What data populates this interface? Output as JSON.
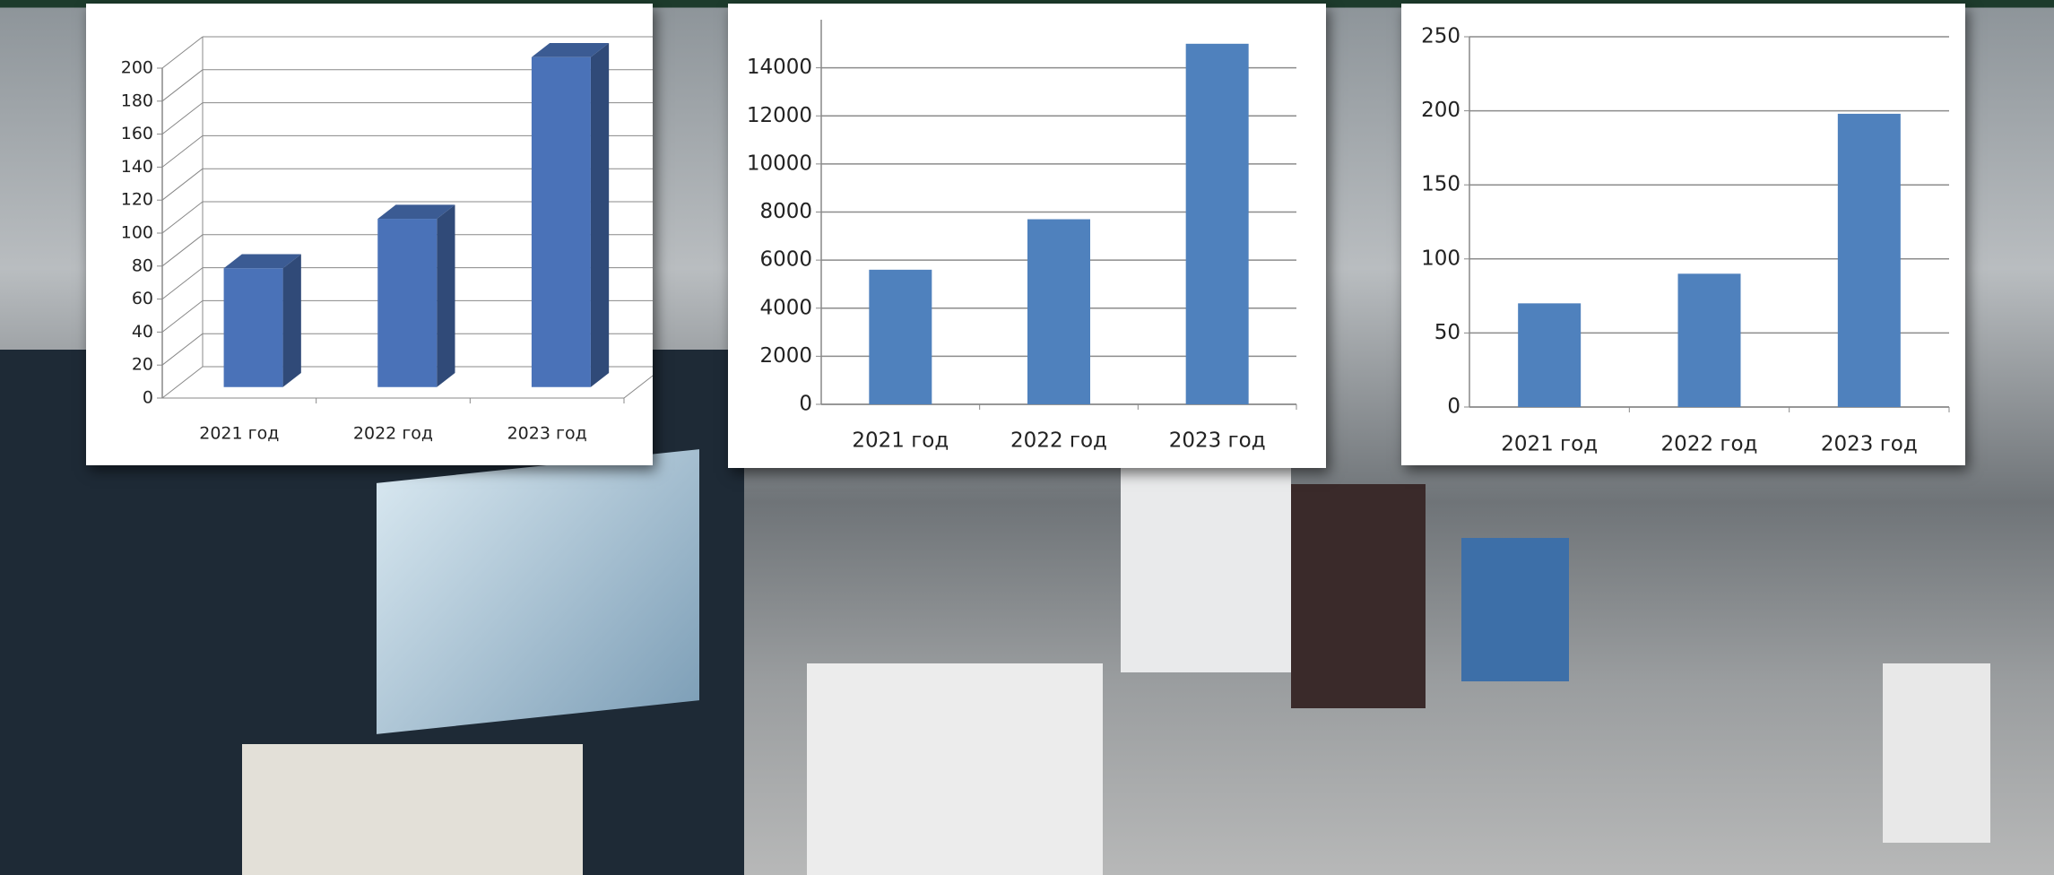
{
  "chart_data": [
    {
      "type": "bar",
      "three_d": true,
      "color": "#4a72b8",
      "categories": [
        "2021 год",
        "2022 год",
        "2023 год"
      ],
      "values": [
        72,
        102,
        200
      ],
      "ylim": [
        0,
        200
      ],
      "yticks": [
        0,
        20,
        40,
        60,
        80,
        100,
        120,
        140,
        160,
        180,
        200
      ],
      "grid": true
    },
    {
      "type": "bar",
      "three_d": false,
      "color": "#4f81bd",
      "categories": [
        "2021 год",
        "2022 год",
        "2023 год"
      ],
      "values": [
        5600,
        7700,
        15000
      ],
      "ylim": [
        0,
        16000
      ],
      "yticks": [
        0,
        2000,
        4000,
        6000,
        8000,
        10000,
        12000,
        14000
      ],
      "grid": true
    },
    {
      "type": "bar",
      "three_d": false,
      "color": "#4f81bd",
      "categories": [
        "2021 год",
        "2022 год",
        "2023 год"
      ],
      "values": [
        70,
        90,
        198
      ],
      "ylim": [
        0,
        250
      ],
      "yticks": [
        0,
        50,
        100,
        150,
        200,
        250
      ],
      "grid": true
    }
  ]
}
